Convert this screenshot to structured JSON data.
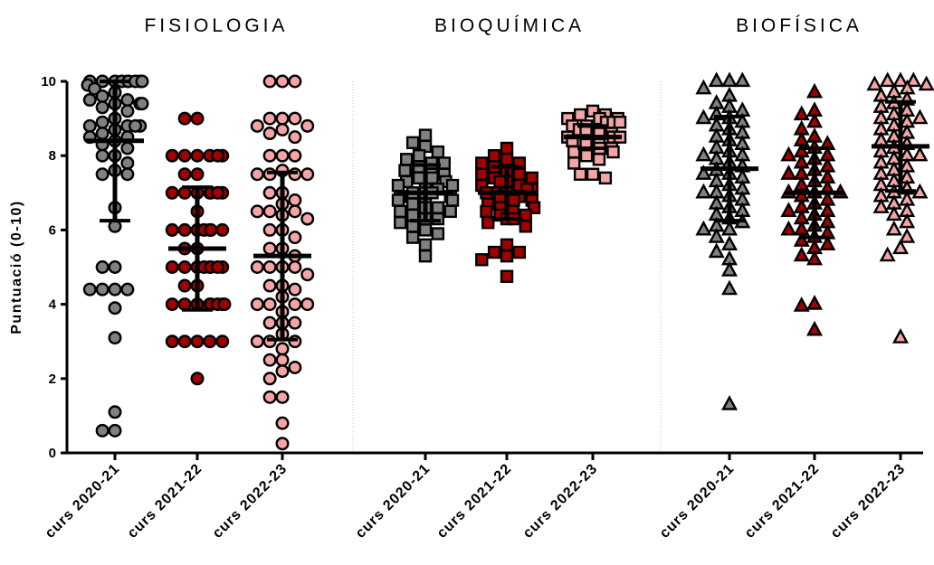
{
  "chart_data": {
    "type": "scatter",
    "ylabel": "Puntuació (0-10)",
    "ylim": [
      0,
      10
    ],
    "yticks": [
      0,
      2,
      4,
      6,
      8,
      10
    ],
    "grid": false,
    "panels": [
      {
        "title": "FISIOLOGIA",
        "marker": "circle",
        "groups": [
          {
            "category": "curs 2020-21",
            "color": "#808080",
            "mean": 8.4,
            "sd": 2.15,
            "values": [
              10,
              10,
              10,
              10,
              10,
              10,
              10,
              10,
              10,
              9.9,
              9.8,
              9.7,
              9.6,
              9.5,
              9.5,
              9.4,
              9.4,
              9.4,
              9.3,
              9.2,
              9.0,
              8.9,
              8.8,
              8.8,
              8.8,
              8.8,
              8.7,
              8.6,
              8.5,
              8.5,
              8.4,
              8.3,
              8.2,
              8.0,
              8.0,
              7.8,
              7.6,
              7.5,
              7.5,
              6.6,
              6.1,
              5.0,
              5.0,
              4.4,
              4.4,
              4.4,
              4.4,
              3.9,
              3.1,
              1.1,
              0.6,
              0.6
            ]
          },
          {
            "category": "curs 2021-22",
            "color": "#a00000",
            "mean": 5.5,
            "sd": 1.65,
            "values": [
              9.0,
              9.0,
              8.0,
              8.0,
              8.0,
              8.0,
              8.0,
              8.0,
              7.5,
              7.5,
              7.0,
              7.0,
              7.0,
              7.0,
              7.0,
              7.0,
              7.0,
              6.5,
              6.0,
              6.0,
              6.0,
              6.0,
              6.0,
              6.0,
              6.0,
              5.5,
              5.5,
              5.0,
              5.0,
              5.0,
              5.0,
              5.0,
              5.0,
              5.0,
              5.0,
              4.5,
              4.5,
              4.0,
              4.0,
              4.0,
              4.0,
              4.0,
              4.0,
              4.0,
              4.0,
              3.0,
              3.0,
              3.0,
              3.0,
              3.0,
              2.0
            ]
          },
          {
            "category": "curs 2022-23",
            "color": "#f4a4a4",
            "mean": 5.3,
            "sd": 2.25,
            "values": [
              10,
              10,
              10,
              9.0,
              9.0,
              9.0,
              8.8,
              8.8,
              8.7,
              8.6,
              8.5,
              8.0,
              8.0,
              8.0,
              7.6,
              7.5,
              7.5,
              7.5,
              7.5,
              7.0,
              7.0,
              6.8,
              6.7,
              6.5,
              6.5,
              6.5,
              6.4,
              6.3,
              6.0,
              6.0,
              5.8,
              5.5,
              5.5,
              5.3,
              5.0,
              5.0,
              5.0,
              5.0,
              4.8,
              4.5,
              4.5,
              4.4,
              4.2,
              4.0,
              4.0,
              4.0,
              4.0,
              3.8,
              3.5,
              3.5,
              3.5,
              3.2,
              3.0,
              3.0,
              3.0,
              2.8,
              2.5,
              2.5,
              2.3,
              2.2,
              2.0,
              1.5,
              1.5,
              0.8,
              0.25
            ]
          }
        ]
      },
      {
        "title": "BIOQUÍMICA",
        "marker": "square",
        "groups": [
          {
            "category": "curs 2020-21",
            "color": "#808080",
            "mean": 7.0,
            "sd": 0.75,
            "values": [
              8.55,
              8.35,
              8.25,
              8.1,
              8.0,
              7.9,
              7.8,
              7.8,
              7.7,
              7.6,
              7.6,
              7.5,
              7.5,
              7.4,
              7.4,
              7.3,
              7.3,
              7.2,
              7.2,
              7.1,
              7.1,
              7.0,
              7.0,
              7.0,
              6.9,
              6.9,
              6.8,
              6.8,
              6.7,
              6.7,
              6.6,
              6.6,
              6.5,
              6.5,
              6.4,
              6.3,
              6.3,
              6.2,
              6.1,
              6.0,
              5.9,
              5.8,
              5.6,
              5.3
            ]
          },
          {
            "category": "curs 2021-22",
            "color": "#a00000",
            "mean": 7.0,
            "sd": 0.7,
            "values": [
              8.2,
              8.0,
              7.9,
              7.8,
              7.8,
              7.7,
              7.6,
              7.5,
              7.5,
              7.4,
              7.4,
              7.3,
              7.3,
              7.2,
              7.2,
              7.1,
              7.1,
              7.0,
              7.0,
              7.0,
              6.9,
              6.9,
              6.8,
              6.8,
              6.7,
              6.6,
              6.6,
              6.5,
              6.5,
              6.4,
              6.4,
              6.3,
              6.3,
              6.2,
              6.1,
              5.6,
              5.4,
              5.4,
              5.3,
              5.2,
              4.75
            ]
          },
          {
            "category": "curs 2022-23",
            "color": "#f4a4a4",
            "mean": 8.5,
            "sd": 0.3,
            "values": [
              9.2,
              9.1,
              9.1,
              9.0,
              9.0,
              9.0,
              8.9,
              8.9,
              8.9,
              8.8,
              8.8,
              8.7,
              8.7,
              8.6,
              8.6,
              8.5,
              8.5,
              8.5,
              8.4,
              8.4,
              8.3,
              8.3,
              8.2,
              8.2,
              8.1,
              8.1,
              8.0,
              7.9,
              7.8,
              7.5,
              7.5,
              7.4
            ]
          }
        ]
      },
      {
        "title": "BIOFÍSICA",
        "marker": "triangle",
        "groups": [
          {
            "category": "curs 2020-21",
            "color": "#808080",
            "mean": 7.65,
            "sd": 1.4,
            "values": [
              10,
              10,
              10,
              9.8,
              9.6,
              9.4,
              9.3,
              9.2,
              9.1,
              9.0,
              9.0,
              8.9,
              8.8,
              8.7,
              8.6,
              8.5,
              8.4,
              8.3,
              8.2,
              8.1,
              8.0,
              8.0,
              7.9,
              7.8,
              7.7,
              7.6,
              7.5,
              7.5,
              7.4,
              7.3,
              7.2,
              7.1,
              7.0,
              7.0,
              6.9,
              6.8,
              6.7,
              6.6,
              6.5,
              6.4,
              6.3,
              6.2,
              6.1,
              6.0,
              6.0,
              5.8,
              5.6,
              5.4,
              5.2,
              4.9,
              4.4,
              1.3
            ]
          },
          {
            "category": "curs 2021-22",
            "color": "#a00000",
            "mean": 7.0,
            "sd": 1.2,
            "values": [
              9.7,
              9.2,
              9.1,
              8.9,
              8.7,
              8.5,
              8.4,
              8.3,
              8.2,
              8.1,
              8.0,
              8.0,
              7.9,
              7.8,
              7.7,
              7.6,
              7.5,
              7.5,
              7.4,
              7.3,
              7.2,
              7.1,
              7.0,
              7.0,
              7.0,
              6.9,
              6.8,
              6.7,
              6.6,
              6.5,
              6.5,
              6.4,
              6.3,
              6.2,
              6.1,
              6.0,
              6.0,
              5.9,
              5.8,
              5.7,
              5.6,
              5.5,
              5.3,
              5.2,
              4.0,
              3.95,
              3.3
            ]
          },
          {
            "category": "curs 2022-23",
            "color": "#f4a4a4",
            "mean": 8.25,
            "sd": 1.2,
            "values": [
              10,
              10,
              10,
              9.9,
              9.9,
              9.8,
              9.7,
              9.6,
              9.5,
              9.4,
              9.3,
              9.2,
              9.1,
              9.0,
              9.0,
              8.9,
              8.8,
              8.7,
              8.6,
              8.5,
              8.4,
              8.3,
              8.2,
              8.1,
              8.0,
              8.0,
              7.9,
              7.8,
              7.7,
              7.6,
              7.5,
              7.4,
              7.3,
              7.2,
              7.1,
              7.0,
              7.0,
              6.9,
              6.8,
              6.7,
              6.6,
              6.5,
              6.4,
              6.2,
              6.0,
              5.8,
              5.5,
              5.3,
              3.1
            ]
          }
        ]
      }
    ]
  }
}
